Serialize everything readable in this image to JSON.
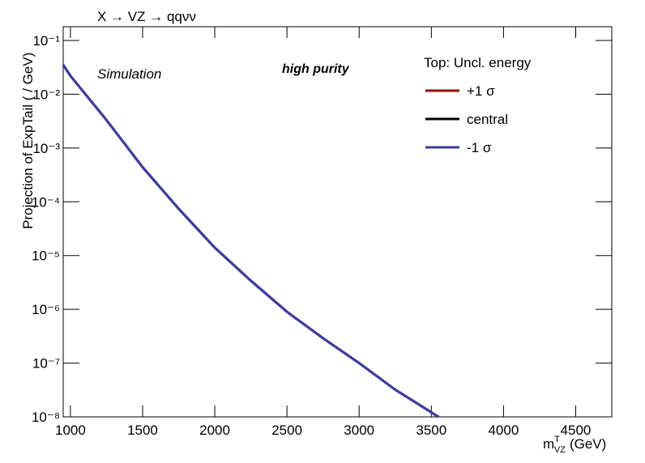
{
  "chart_data": {
    "type": "line",
    "title": "X → VZ → qqνν",
    "y_label": "Projection of ExpTail ( / GeV)",
    "x_label": {
      "base": "m",
      "sup": "T",
      "sub": "VZ",
      "unit": "(GeV)"
    },
    "annotations": [
      "Simulation",
      "high purity"
    ],
    "legend_title": "Top: Uncl. energy",
    "log_y": true,
    "x": [
      950,
      1000,
      1250,
      1500,
      1750,
      2000,
      2250,
      2500,
      2750,
      3000,
      3250,
      3550
    ],
    "series": [
      {
        "name": "+1 σ",
        "color": "#990000",
        "values": [
          0.035,
          0.022,
          0.0033,
          0.00044,
          7.4e-05,
          1.4e-05,
          3.4e-06,
          9e-07,
          2.9e-07,
          1e-07,
          3.2e-08,
          1e-08
        ]
      },
      {
        "name": "central",
        "color": "#000000",
        "values": [
          0.035,
          0.022,
          0.0033,
          0.00044,
          7.4e-05,
          1.4e-05,
          3.4e-06,
          9e-07,
          2.9e-07,
          1e-07,
          3.2e-08,
          1e-08
        ]
      },
      {
        "name": "-1 σ",
        "color": "#3f3f9f",
        "values": [
          0.035,
          0.022,
          0.0033,
          0.00044,
          7.4e-05,
          1.4e-05,
          3.4e-06,
          9e-07,
          2.9e-07,
          1e-07,
          3.2e-08,
          1e-08
        ]
      }
    ],
    "xlim": [
      950,
      4750
    ],
    "xticks": [
      1000,
      1500,
      2000,
      2500,
      3000,
      3500,
      4000,
      4500
    ],
    "ylim": [
      1e-08,
      0.18
    ],
    "yticks": [
      {
        "value": 1e-08,
        "label": "10⁻⁸"
      },
      {
        "value": 1e-07,
        "label": "10⁻⁷"
      },
      {
        "value": 1e-06,
        "label": "10⁻⁶"
      },
      {
        "value": 1e-05,
        "label": "10⁻⁵"
      },
      {
        "value": 0.0001,
        "label": "10⁻⁴"
      },
      {
        "value": 0.001,
        "label": "10⁻³"
      },
      {
        "value": 0.01,
        "label": "10⁻²"
      },
      {
        "value": 0.1,
        "label": "10⁻¹"
      }
    ]
  }
}
